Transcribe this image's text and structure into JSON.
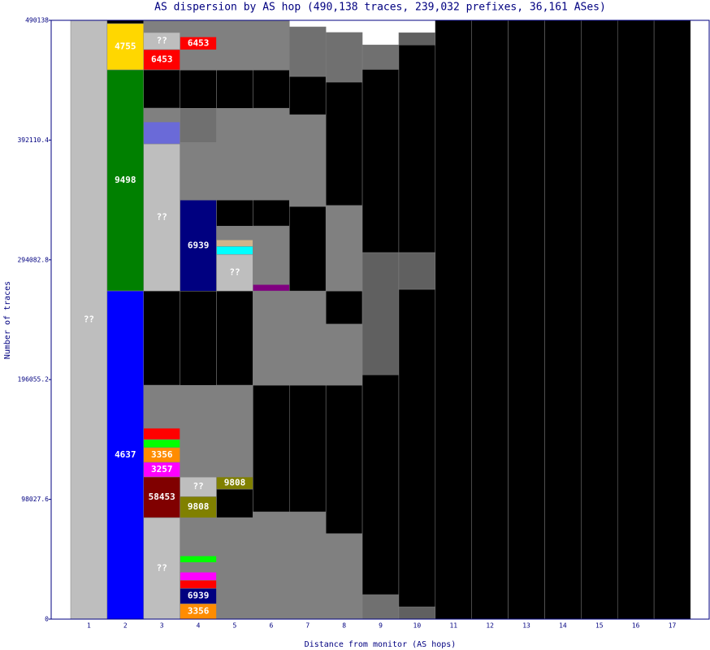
{
  "chart_data": {
    "type": "stacked-bar",
    "title": "AS dispersion by AS hop (490,138 traces, 239,032 prefixes, 36,161 ASes)",
    "x_label": "Distance from monitor (AS hops)",
    "y_label": "Number of traces",
    "ylim": [
      0,
      490138
    ],
    "yticks": [
      0,
      98027.6,
      196055.2,
      294082.8,
      392110.4,
      490138
    ],
    "categories": [
      "1",
      "2",
      "3",
      "4",
      "5",
      "6",
      "7",
      "8",
      "9",
      "10",
      "11",
      "12",
      "13",
      "14",
      "15",
      "16",
      "17"
    ],
    "columns": [
      {
        "segments": [
          {
            "value": 490138,
            "color": "#bebebe",
            "label": "??"
          }
        ]
      },
      {
        "segments": [
          {
            "value": 268700,
            "color": "#0000ff",
            "label": "4637"
          },
          {
            "value": 180900,
            "color": "#008000",
            "label": "9498"
          },
          {
            "value": 37900,
            "color": "#ffd700",
            "label": "4755"
          },
          {
            "value": 2600,
            "color": "#000000"
          }
        ]
      },
      {
        "segments": [
          {
            "value": 83100,
            "color": "#bebebe",
            "label": "??"
          },
          {
            "value": 33300,
            "color": "#800000",
            "label": "58453"
          },
          {
            "value": 12000,
            "color": "#ff00ff",
            "label": "3257"
          },
          {
            "value": 12000,
            "color": "#ff8c00",
            "label": "3356"
          },
          {
            "value": 6600,
            "color": "#00ff00"
          },
          {
            "value": 9300,
            "color": "#ff0000"
          },
          {
            "value": 35200,
            "color": "#808080"
          },
          {
            "value": 77100,
            "color": "#000000"
          },
          {
            "value": 120400,
            "color": "#bebebe",
            "label": "??"
          },
          {
            "value": 18000,
            "color": "#6a6ad8"
          },
          {
            "value": 11300,
            "color": "#808080"
          },
          {
            "value": 31300,
            "color": "#000000"
          },
          {
            "value": 16600,
            "color": "#ff0000",
            "label": "6453"
          },
          {
            "value": 14000,
            "color": "#bebebe",
            "label": "??"
          },
          {
            "value": 10000,
            "color": "#808080"
          }
        ]
      },
      {
        "segments": [
          {
            "value": 12600,
            "color": "#ff8c00",
            "label": "3356"
          },
          {
            "value": 12600,
            "color": "#000080",
            "label": "6939"
          },
          {
            "value": 6600,
            "color": "#ff0000"
          },
          {
            "value": 6600,
            "color": "#ff00ff"
          },
          {
            "value": 8000,
            "color": "#808080"
          },
          {
            "value": 5300,
            "color": "#00ff00"
          },
          {
            "value": 31300,
            "color": "#808080"
          },
          {
            "value": 17300,
            "color": "#808000",
            "label": "9808"
          },
          {
            "value": 16000,
            "color": "#bebebe",
            "label": "??"
          },
          {
            "value": 75100,
            "color": "#808080"
          },
          {
            "value": 77100,
            "color": "#000000"
          },
          {
            "value": 74500,
            "color": "#000080",
            "label": "6939"
          },
          {
            "value": 47200,
            "color": "#808080"
          },
          {
            "value": 27900,
            "color": "#707070"
          },
          {
            "value": 31300,
            "color": "#000000"
          },
          {
            "value": 16600,
            "color": "#808080"
          },
          {
            "value": 10600,
            "color": "#ff0000",
            "label": "6453"
          },
          {
            "value": 13300,
            "color": "#808080"
          }
        ]
      },
      {
        "segments": [
          {
            "value": 83100,
            "color": "#808080"
          },
          {
            "value": 23300,
            "color": "#000000"
          },
          {
            "value": 10000,
            "color": "#808000",
            "label": "9808"
          },
          {
            "value": 75100,
            "color": "#808080"
          },
          {
            "value": 77100,
            "color": "#000000"
          },
          {
            "value": 29900,
            "color": "#bebebe",
            "label": "??"
          },
          {
            "value": 6600,
            "color": "#00ffff"
          },
          {
            "value": 5300,
            "color": "#d2b48c"
          },
          {
            "value": 11300,
            "color": "#808080"
          },
          {
            "value": 21300,
            "color": "#000000"
          },
          {
            "value": 75100,
            "color": "#808080"
          },
          {
            "value": 31300,
            "color": "#000000"
          },
          {
            "value": 40600,
            "color": "#808080"
          }
        ]
      },
      {
        "segments": [
          {
            "value": 87800,
            "color": "#808080"
          },
          {
            "value": 103700,
            "color": "#000000"
          },
          {
            "value": 77100,
            "color": "#808080"
          },
          {
            "value": 5300,
            "color": "#800080"
          },
          {
            "value": 47900,
            "color": "#808080"
          },
          {
            "value": 21300,
            "color": "#000000"
          },
          {
            "value": 75100,
            "color": "#808080"
          },
          {
            "value": 31300,
            "color": "#000000"
          },
          {
            "value": 40600,
            "color": "#808080"
          }
        ]
      },
      {
        "segments": [
          {
            "value": 87800,
            "color": "#808080"
          },
          {
            "value": 103700,
            "color": "#000000"
          },
          {
            "value": 77100,
            "color": "#808080"
          },
          {
            "value": 69200,
            "color": "#000000"
          },
          {
            "value": 75100,
            "color": "#808080"
          },
          {
            "value": 31300,
            "color": "#000000"
          },
          {
            "value": 40600,
            "color": "#707070"
          }
        ]
      },
      {
        "segments": [
          {
            "value": 70000,
            "color": "#808080"
          },
          {
            "value": 121500,
            "color": "#000000"
          },
          {
            "value": 50000,
            "color": "#808080"
          },
          {
            "value": 27100,
            "color": "#000000"
          },
          {
            "value": 70000,
            "color": "#808080"
          },
          {
            "value": 101000,
            "color": "#000000"
          },
          {
            "value": 40600,
            "color": "#707070"
          }
        ]
      },
      {
        "segments": [
          {
            "value": 20000,
            "color": "#707070"
          },
          {
            "value": 180000,
            "color": "#000000"
          },
          {
            "value": 100000,
            "color": "#606060"
          },
          {
            "value": 150000,
            "color": "#000000"
          },
          {
            "value": 20000,
            "color": "#707070"
          }
        ]
      },
      {
        "segments": [
          {
            "value": 10000,
            "color": "#606060"
          },
          {
            "value": 260000,
            "color": "#000000"
          },
          {
            "value": 30000,
            "color": "#606060"
          },
          {
            "value": 170000,
            "color": "#000000"
          },
          {
            "value": 10000,
            "color": "#606060"
          }
        ]
      },
      {
        "segments": [
          {
            "value": 490138,
            "color": "#000000"
          }
        ]
      },
      {
        "segments": [
          {
            "value": 490138,
            "color": "#000000"
          }
        ]
      },
      {
        "segments": [
          {
            "value": 490138,
            "color": "#000000"
          }
        ]
      },
      {
        "segments": [
          {
            "value": 490138,
            "color": "#000000"
          }
        ]
      },
      {
        "segments": [
          {
            "value": 490138,
            "color": "#000000"
          }
        ]
      },
      {
        "segments": [
          {
            "value": 490138,
            "color": "#000000"
          }
        ]
      },
      {
        "segments": [
          {
            "value": 490138,
            "color": "#000000"
          }
        ]
      }
    ]
  }
}
